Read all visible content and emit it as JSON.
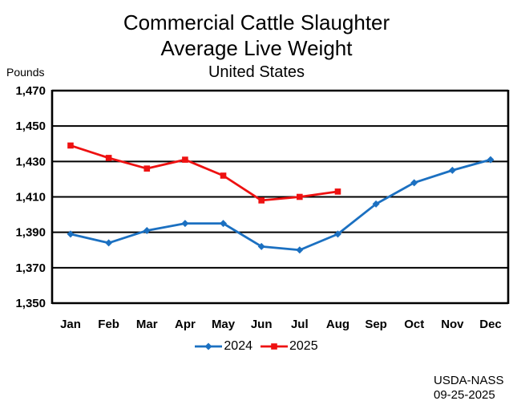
{
  "header": {
    "title_line1": "Commercial Cattle Slaughter",
    "title_line2": "Average Live Weight",
    "subtitle": "United States",
    "y_axis_unit": "Pounds"
  },
  "source": {
    "org": "USDA-NASS",
    "date": "09-25-2025"
  },
  "legend": [
    {
      "label": "2024",
      "color": "#1b70c1",
      "marker": "diamond"
    },
    {
      "label": "2025",
      "color": "#ee1111",
      "marker": "square"
    }
  ],
  "colors": {
    "series_2024": "#1b70c1",
    "series_2025": "#ee1111",
    "axis": "#000000",
    "background": "#ffffff"
  },
  "chart_data": {
    "type": "line",
    "title": "Commercial Cattle Slaughter Average Live Weight",
    "subtitle": "United States",
    "xlabel": "",
    "ylabel": "Pounds",
    "categories": [
      "Jan",
      "Feb",
      "Mar",
      "Apr",
      "May",
      "Jun",
      "Jul",
      "Aug",
      "Sep",
      "Oct",
      "Nov",
      "Dec"
    ],
    "series": [
      {
        "name": "2024",
        "color": "#1b70c1",
        "marker": "diamond",
        "values": [
          1389,
          1384,
          1391,
          1395,
          1395,
          1382,
          1380,
          1389,
          1406,
          1418,
          1425,
          1431
        ]
      },
      {
        "name": "2025",
        "color": "#ee1111",
        "marker": "square",
        "values": [
          1439,
          1432,
          1426,
          1431,
          1422,
          1408,
          1410,
          1413
        ]
      }
    ],
    "ylim": [
      1350,
      1470
    ],
    "y_ticks": [
      1470,
      1450,
      1430,
      1410,
      1390,
      1370,
      1350
    ],
    "y_tick_labels": [
      "1,470",
      "1,450",
      "1,430",
      "1,410",
      "1,390",
      "1,370",
      "1,350"
    ],
    "grid": true,
    "legend_position": "bottom",
    "source_note": "USDA-NASS 09-25-2025"
  }
}
